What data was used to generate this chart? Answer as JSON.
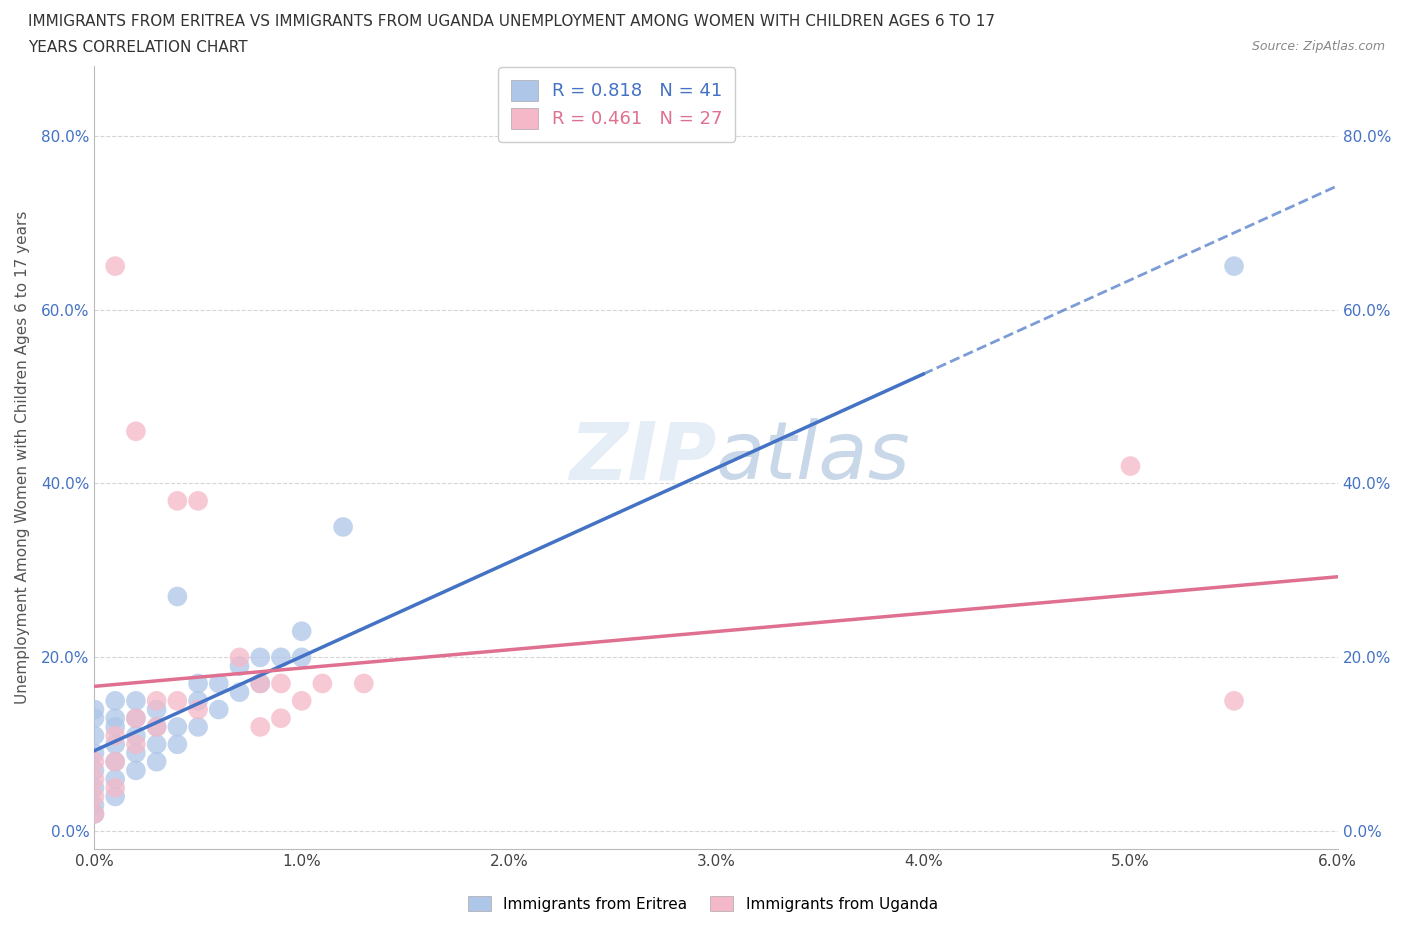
{
  "title_line1": "IMMIGRANTS FROM ERITREA VS IMMIGRANTS FROM UGANDA UNEMPLOYMENT AMONG WOMEN WITH CHILDREN AGES 6 TO 17",
  "title_line2": "YEARS CORRELATION CHART",
  "source": "Source: ZipAtlas.com",
  "ylabel": "Unemployment Among Women with Children Ages 6 to 17 years",
  "xlim": [
    0.0,
    0.06
  ],
  "ylim": [
    -0.02,
    0.88
  ],
  "xticks": [
    0.0,
    0.01,
    0.02,
    0.03,
    0.04,
    0.05,
    0.06
  ],
  "xtick_labels": [
    "0.0%",
    "1.0%",
    "2.0%",
    "3.0%",
    "4.0%",
    "5.0%",
    "6.0%"
  ],
  "yticks": [
    0.0,
    0.2,
    0.4,
    0.6,
    0.8
  ],
  "ytick_labels": [
    "0.0%",
    "20.0%",
    "40.0%",
    "60.0%",
    "80.0%"
  ],
  "blue_R": 0.818,
  "blue_N": 41,
  "pink_R": 0.461,
  "pink_N": 27,
  "blue_color": "#aec6e8",
  "blue_line_color": "#4472c4",
  "pink_color": "#f4b8c8",
  "pink_line_color": "#e07090",
  "blue_scatter_x": [
    0.0,
    0.0,
    0.0,
    0.0,
    0.0,
    0.0,
    0.0,
    0.0,
    0.001,
    0.001,
    0.001,
    0.001,
    0.001,
    0.001,
    0.001,
    0.002,
    0.002,
    0.002,
    0.002,
    0.002,
    0.003,
    0.003,
    0.003,
    0.003,
    0.004,
    0.004,
    0.004,
    0.005,
    0.005,
    0.005,
    0.006,
    0.006,
    0.007,
    0.007,
    0.008,
    0.008,
    0.009,
    0.01,
    0.01,
    0.012,
    0.055
  ],
  "blue_scatter_y": [
    0.02,
    0.03,
    0.05,
    0.07,
    0.09,
    0.11,
    0.13,
    0.14,
    0.04,
    0.06,
    0.08,
    0.1,
    0.12,
    0.13,
    0.15,
    0.07,
    0.09,
    0.11,
    0.13,
    0.15,
    0.08,
    0.1,
    0.12,
    0.14,
    0.1,
    0.12,
    0.27,
    0.12,
    0.15,
    0.17,
    0.14,
    0.17,
    0.16,
    0.19,
    0.17,
    0.2,
    0.2,
    0.2,
    0.23,
    0.35,
    0.65
  ],
  "pink_scatter_x": [
    0.0,
    0.0,
    0.0,
    0.0,
    0.001,
    0.001,
    0.001,
    0.001,
    0.002,
    0.002,
    0.002,
    0.003,
    0.003,
    0.004,
    0.004,
    0.005,
    0.005,
    0.007,
    0.008,
    0.008,
    0.009,
    0.009,
    0.01,
    0.011,
    0.013,
    0.05,
    0.055
  ],
  "pink_scatter_y": [
    0.02,
    0.04,
    0.06,
    0.08,
    0.05,
    0.08,
    0.11,
    0.65,
    0.1,
    0.13,
    0.46,
    0.12,
    0.15,
    0.15,
    0.38,
    0.14,
    0.38,
    0.2,
    0.12,
    0.17,
    0.13,
    0.17,
    0.15,
    0.17,
    0.17,
    0.42,
    0.15
  ],
  "background_color": "#ffffff",
  "grid_color": "#cccccc",
  "legend_label_blue": "Immigrants from Eritrea",
  "legend_label_pink": "Immigrants from Uganda"
}
